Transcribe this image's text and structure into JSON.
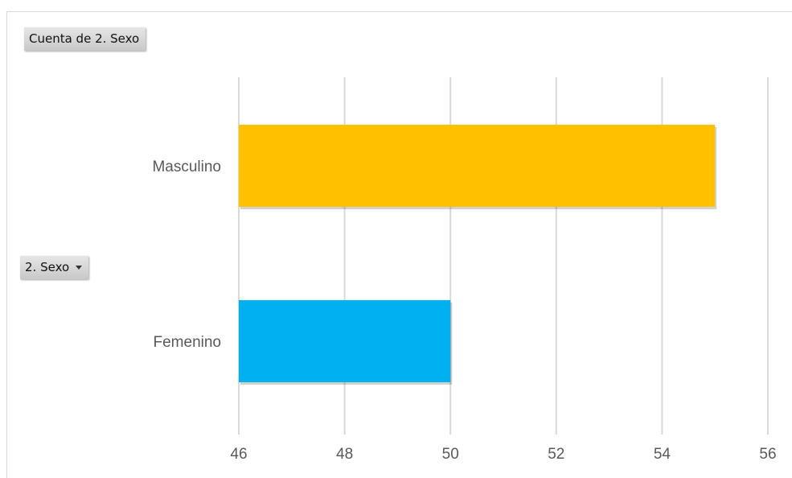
{
  "pivot": {
    "values_field_label": "Cuenta de 2. Sexo",
    "axis_field_label": "2. Sexo"
  },
  "chart_data": {
    "type": "bar",
    "orientation": "horizontal",
    "categories": [
      "Masculino",
      "Femenino"
    ],
    "values": [
      55,
      50
    ],
    "colors": [
      "#FFC000",
      "#00B0F0"
    ],
    "xlim": [
      46,
      56
    ],
    "xticks": [
      "46",
      "48",
      "50",
      "52",
      "54",
      "56"
    ],
    "grid": true,
    "title": "",
    "xlabel": "",
    "ylabel": ""
  }
}
